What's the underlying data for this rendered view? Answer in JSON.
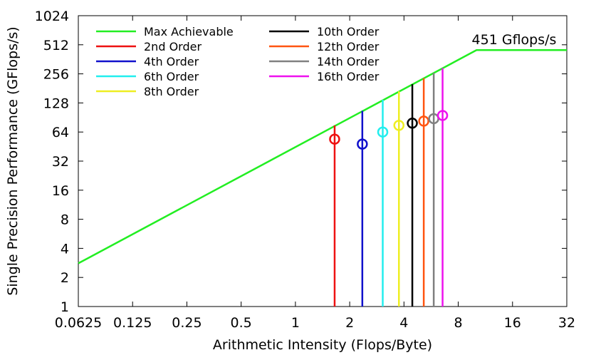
{
  "chart_data": {
    "type": "line",
    "title": "",
    "xlabel": "Arithmetic Intensity (Flops/Byte)",
    "ylabel": "Single Precision Performance (GFlops/s)",
    "xscale": "log2",
    "yscale": "log2",
    "xlim": [
      0.0625,
      32
    ],
    "ylim": [
      1,
      1024
    ],
    "x_ticks": [
      {
        "value": 0.0625,
        "label": "0.0625"
      },
      {
        "value": 0.125,
        "label": "0.125"
      },
      {
        "value": 0.25,
        "label": "0.25"
      },
      {
        "value": 0.5,
        "label": "0.5"
      },
      {
        "value": 1,
        "label": "1"
      },
      {
        "value": 2,
        "label": "2"
      },
      {
        "value": 4,
        "label": "4"
      },
      {
        "value": 8,
        "label": "8"
      },
      {
        "value": 16,
        "label": "16"
      },
      {
        "value": 32,
        "label": "32"
      }
    ],
    "y_ticks": [
      {
        "value": 1,
        "label": "1"
      },
      {
        "value": 2,
        "label": "2"
      },
      {
        "value": 4,
        "label": "4"
      },
      {
        "value": 8,
        "label": "8"
      },
      {
        "value": 16,
        "label": "16"
      },
      {
        "value": 32,
        "label": "32"
      },
      {
        "value": 64,
        "label": "64"
      },
      {
        "value": 128,
        "label": "128"
      },
      {
        "value": 256,
        "label": "256"
      },
      {
        "value": 512,
        "label": "512"
      },
      {
        "value": 1024,
        "label": "1024"
      }
    ],
    "grid": false,
    "legend_position": "top-left",
    "roofline": {
      "name": "Max Achievable",
      "color": "#22ee22",
      "points": [
        [
          0.0625,
          2.8
        ],
        [
          10.1,
          451
        ],
        [
          32,
          451
        ]
      ]
    },
    "series": [
      {
        "name": "2nd Order",
        "color": "#ee1111",
        "x": 1.65,
        "measured": 54,
        "roof": 75
      },
      {
        "name": "4th Order",
        "color": "#1111cc",
        "x": 2.35,
        "measured": 48,
        "roof": 106
      },
      {
        "name": "6th Order",
        "color": "#22eeee",
        "x": 3.05,
        "measured": 64,
        "roof": 138
      },
      {
        "name": "8th Order",
        "color": "#eeee22",
        "x": 3.75,
        "measured": 75,
        "roof": 169
      },
      {
        "name": "10th Order",
        "color": "#000000",
        "x": 4.45,
        "measured": 79,
        "roof": 200
      },
      {
        "name": "12th Order",
        "color": "#ff5511",
        "x": 5.15,
        "measured": 83,
        "roof": 231
      },
      {
        "name": "14th Order",
        "color": "#808080",
        "x": 5.85,
        "measured": 88,
        "roof": 262
      },
      {
        "name": "16th Order",
        "color": "#ee11ee",
        "x": 6.55,
        "measured": 95,
        "roof": 293
      }
    ],
    "annotations": [
      {
        "text": "451 Gflops/s",
        "x": 10.1,
        "y": 451
      }
    ]
  }
}
